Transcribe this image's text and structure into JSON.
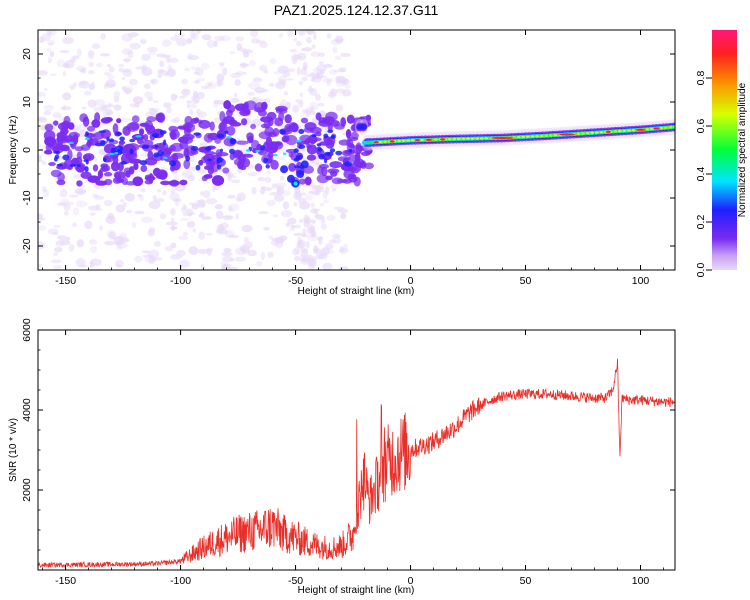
{
  "title": "PAZ1.2025.124.12.37.G11",
  "chart_data": [
    {
      "type": "heatmap",
      "xlabel": "Height of straight line (km)",
      "ylabel": "Frequency (Hz)",
      "xlim": [
        -162,
        115
      ],
      "ylim": [
        -25,
        25
      ],
      "xticks": [
        -150,
        -100,
        -50,
        0,
        50,
        100
      ],
      "yticks": [
        -20,
        -10,
        0,
        10,
        20
      ],
      "colorbar": {
        "label": "Normalized spectral amplitude",
        "range": [
          0,
          1
        ],
        "ticks": [
          "0.0",
          "0.2",
          "0.4",
          "0.6",
          "0.8"
        ],
        "colors": [
          "#e8d8f8",
          "#7a2cf0",
          "#1f1fff",
          "#00e5ff",
          "#00ff3a",
          "#d8ff00",
          "#ff9000",
          "#ff2020",
          "#ff1878"
        ]
      },
      "ridge": {
        "x": [
          -20,
          0,
          20,
          40,
          60,
          80,
          100,
          115
        ],
        "freq_hz": [
          1.5,
          2.0,
          2.3,
          2.5,
          3.0,
          3.6,
          4.2,
          4.8
        ]
      },
      "grid": false
    },
    {
      "type": "line",
      "xlabel": "Height of straight line (km)",
      "ylabel": "SNR (10 * v/v)",
      "xlim": [
        -162,
        115
      ],
      "ylim": [
        0,
        6000
      ],
      "xticks": [
        -150,
        -100,
        -50,
        0,
        50,
        100
      ],
      "yticks": [
        2000,
        4000,
        6000
      ],
      "color": "#e8302a",
      "series": [
        {
          "x": [
            -162,
            -150,
            -130,
            -110,
            -100,
            -92,
            -85,
            -80,
            -75,
            -70,
            -65,
            -60,
            -55,
            -50,
            -45,
            -40,
            -35,
            -30,
            -25,
            -22,
            -20,
            -18,
            -15,
            -12,
            -10,
            -5,
            0,
            5,
            10,
            15,
            20,
            25,
            30,
            35,
            40,
            50,
            60,
            70,
            80,
            85,
            88,
            90,
            91,
            92,
            95,
            100,
            110,
            115
          ],
          "y": [
            120,
            130,
            140,
            160,
            220,
            500,
            700,
            800,
            900,
            950,
            1000,
            1100,
            900,
            800,
            700,
            600,
            550,
            600,
            900,
            1800,
            2300,
            1700,
            2100,
            2500,
            2700,
            2900,
            3000,
            3100,
            3200,
            3400,
            3600,
            3900,
            4100,
            4250,
            4350,
            4400,
            4400,
            4350,
            4300,
            4300,
            4500,
            5200,
            2800,
            4300,
            4250,
            4250,
            4200,
            4200
          ]
        }
      ],
      "grid": false
    }
  ]
}
